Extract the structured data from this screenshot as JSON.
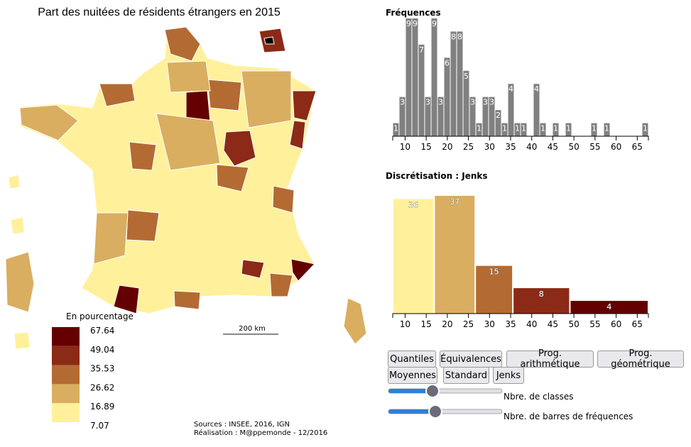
{
  "title": "Part des nuitées de résidents étrangers en 2015",
  "map": {
    "legend_title": "En pourcentage",
    "breaks": [
      67.64,
      49.04,
      35.53,
      26.62,
      16.89,
      7.07
    ],
    "colors": [
      "#640000",
      "#8b2a16",
      "#b36b33",
      "#d9ae60",
      "#fff09b"
    ],
    "scale_bar": "200 km",
    "sources": "Sources : INSEE, 2016, IGN",
    "credits": "Réalisation : M@ppemonde - 12/2016"
  },
  "chart_data": [
    {
      "type": "histogram",
      "title": "Fréquences",
      "color": "#808080",
      "bins": [
        7.07,
        8.58,
        10.1,
        11.61,
        13.13,
        14.64,
        16.16,
        17.67,
        19.18,
        20.7,
        22.21,
        23.73,
        25.24,
        26.76,
        28.27,
        29.78,
        31.3,
        32.81,
        34.33,
        35.84,
        37.36,
        38.87,
        40.38,
        41.9,
        43.41,
        44.93,
        46.44,
        47.96,
        49.47,
        50.98,
        52.5,
        54.01,
        55.53,
        57.04,
        58.56,
        60.07,
        61.58,
        63.1,
        64.61,
        66.13,
        67.64
      ],
      "values": [
        1,
        3,
        9,
        9,
        7,
        3,
        9,
        3,
        6,
        8,
        8,
        5,
        3,
        1,
        3,
        3,
        2,
        1,
        4,
        1,
        1,
        0,
        4,
        1,
        0,
        1,
        0,
        1,
        0,
        0,
        0,
        1,
        0,
        1,
        0,
        0,
        0,
        0,
        0,
        1
      ],
      "xlim": [
        7.07,
        67.64
      ],
      "xticks": [
        10,
        15,
        20,
        25,
        30,
        35,
        40,
        45,
        50,
        55,
        60,
        65
      ]
    },
    {
      "type": "histogram",
      "title": "Discrétisation : Jenks",
      "colors": [
        "#fff09b",
        "#d9ae60",
        "#b36b33",
        "#8b2a16",
        "#640000"
      ],
      "bins": [
        7.07,
        16.89,
        26.62,
        35.53,
        49.04,
        67.64
      ],
      "values": [
        36,
        37,
        15,
        8,
        4
      ],
      "xlim": [
        7.07,
        67.64
      ],
      "xticks": [
        10,
        15,
        20,
        25,
        30,
        35,
        40,
        45,
        50,
        55,
        60,
        65
      ]
    }
  ],
  "controls": {
    "buttons": [
      "Quantiles",
      "Équivalences",
      "Prog. arithmétique",
      "Prog. géométrique",
      "Moyennes",
      "Standard",
      "Jenks"
    ],
    "sliders": [
      "Nbre. de classes",
      "Nbre. de barres de fréquences"
    ]
  }
}
